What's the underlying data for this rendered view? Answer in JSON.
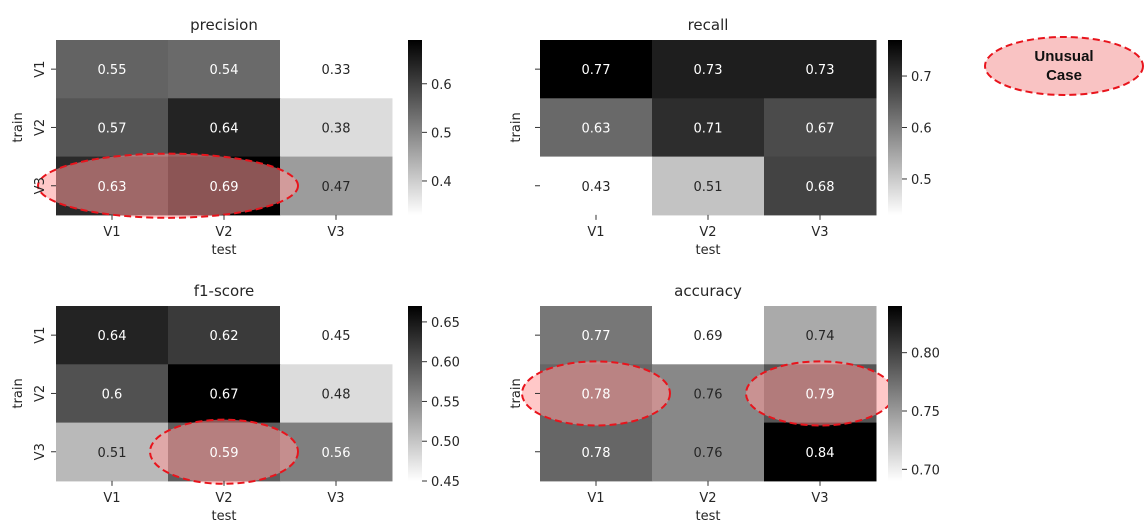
{
  "chart_data": [
    {
      "type": "heatmap",
      "title": "precision",
      "xlabel": "test",
      "ylabel": "train",
      "x_categories": [
        "V1",
        "V2",
        "V3"
      ],
      "y_categories": [
        "V1",
        "V2",
        "V3"
      ],
      "values": [
        [
          0.55,
          0.54,
          0.33
        ],
        [
          0.57,
          0.64,
          0.38
        ],
        [
          0.63,
          0.69,
          0.47
        ]
      ],
      "labels": [
        [
          "0.55",
          "0.54",
          "0.33"
        ],
        [
          "0.57",
          "0.64",
          "0.38"
        ],
        [
          "0.63",
          "0.69",
          "0.47"
        ]
      ],
      "show_x_ticks": true,
      "show_y_ticks": true,
      "show_xlabel": true,
      "colorbar": {
        "ticks": [
          "0.4",
          "0.5",
          "0.6"
        ],
        "tick_values": [
          0.4,
          0.5,
          0.6
        ],
        "range": [
          0.33,
          0.69
        ]
      }
    },
    {
      "type": "heatmap",
      "title": "recall",
      "xlabel": "test",
      "ylabel": "train",
      "x_categories": [
        "V1",
        "V2",
        "V3"
      ],
      "y_categories": [
        "",
        "",
        ""
      ],
      "values": [
        [
          0.77,
          0.73,
          0.73
        ],
        [
          0.63,
          0.71,
          0.67
        ],
        [
          0.43,
          0.51,
          0.68
        ]
      ],
      "labels": [
        [
          "0.77",
          "0.73",
          "0.73"
        ],
        [
          "0.63",
          "0.71",
          "0.67"
        ],
        [
          "0.43",
          "0.51",
          "0.68"
        ]
      ],
      "show_x_ticks": true,
      "show_y_ticks": false,
      "show_xlabel": true,
      "colorbar": {
        "ticks": [
          "0.5",
          "0.6",
          "0.7"
        ],
        "tick_values": [
          0.5,
          0.6,
          0.7
        ],
        "range": [
          0.43,
          0.77
        ]
      }
    },
    {
      "type": "heatmap",
      "title": "f1-score",
      "xlabel": "test",
      "ylabel": "train",
      "x_categories": [
        "V1",
        "V2",
        "V3"
      ],
      "y_categories": [
        "V1",
        "V2",
        "V3"
      ],
      "values": [
        [
          0.64,
          0.62,
          0.45
        ],
        [
          0.6,
          0.67,
          0.48
        ],
        [
          0.51,
          0.59,
          0.56
        ]
      ],
      "labels": [
        [
          "0.64",
          "0.62",
          "0.45"
        ],
        [
          "0.6",
          "0.67",
          "0.48"
        ],
        [
          "0.51",
          "0.59",
          "0.56"
        ]
      ],
      "show_x_ticks": true,
      "show_y_ticks": true,
      "show_xlabel": true,
      "colorbar": {
        "ticks": [
          "0.45",
          "0.50",
          "0.55",
          "0.60",
          "0.65"
        ],
        "tick_values": [
          0.45,
          0.5,
          0.55,
          0.6,
          0.65
        ],
        "range": [
          0.45,
          0.67
        ]
      }
    },
    {
      "type": "heatmap",
      "title": "accuracy",
      "xlabel": "test",
      "ylabel": "train",
      "x_categories": [
        "V1",
        "V2",
        "V3"
      ],
      "y_categories": [
        "",
        "",
        ""
      ],
      "values": [
        [
          0.77,
          0.69,
          0.74
        ],
        [
          0.78,
          0.76,
          0.79
        ],
        [
          0.78,
          0.76,
          0.84
        ]
      ],
      "labels": [
        [
          "0.77",
          "0.69",
          "0.74"
        ],
        [
          "0.78",
          "0.76",
          "0.79"
        ],
        [
          "0.78",
          "0.76",
          "0.84"
        ]
      ],
      "show_x_ticks": true,
      "show_y_ticks": false,
      "show_xlabel": true,
      "colorbar": {
        "ticks": [
          "0.70",
          "0.75",
          "0.80"
        ],
        "tick_values": [
          0.7,
          0.75,
          0.8
        ],
        "range": [
          0.69,
          0.84
        ]
      }
    }
  ],
  "annotation": {
    "label_lines": [
      "Unusual",
      "Case"
    ],
    "highlight_color": "#ff9a9a",
    "outline_color": "#e8141c",
    "highlights": [
      {
        "panel": 0,
        "row": 2,
        "cols": [
          0,
          1
        ]
      },
      {
        "panel": 2,
        "row": 2,
        "cols": [
          1
        ]
      },
      {
        "panel": 3,
        "row": 1,
        "cols": [
          0
        ]
      },
      {
        "panel": 3,
        "row": 1,
        "cols": [
          2
        ]
      }
    ]
  }
}
